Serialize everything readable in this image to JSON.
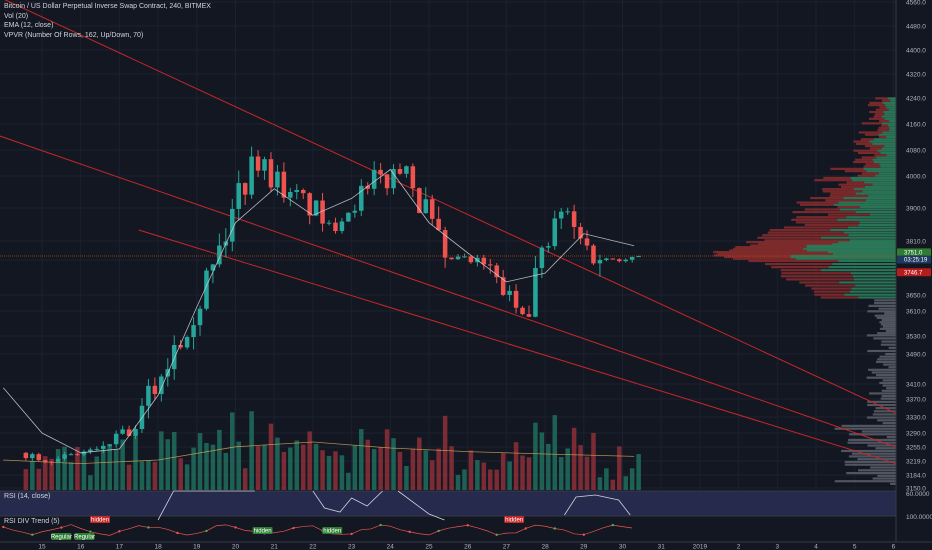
{
  "legend": {
    "title": "Bitcoin / US Dollar Perpetual Inverse Swap Contract, 240, BITMEX",
    "vol": "Vol (20)",
    "ema": "EMA (12, close)",
    "vpvr": "VPVR (Number Of Rows, 162, Up/Down, 70)"
  },
  "rsi_label": "RSI (14, close)",
  "rsi_div_label": "RSI DIV Trend (5)",
  "colors": {
    "background": "#131722",
    "up": "#26a69a",
    "down": "#ef5350",
    "trendline": "#c62828",
    "ema": "#d1d4dc",
    "vol_ma": "#d8a657",
    "rsi_band": "#262a4d",
    "price_tag": "#b71c1c",
    "axis_text": "#b2b5be"
  },
  "badges": {
    "last_price": "3746.7",
    "marker_a": "3751.0",
    "marker_b": "03:25:19"
  },
  "rsi_div_tags": [
    {
      "text": "hidden",
      "kind": "bear"
    },
    {
      "text": "hidden",
      "kind": "bull"
    },
    {
      "text": "hidden",
      "kind": "bull"
    },
    {
      "text": "hidden",
      "kind": "bear"
    },
    {
      "text": "Regular",
      "kind": "bull"
    },
    {
      "text": "Regular",
      "kind": "bull"
    }
  ],
  "chart_data": {
    "type": "candlestick",
    "title": "Bitcoin / US Dollar Perpetual Inverse Swap Contract, 240, BITMEX",
    "x_ticks": [
      "15",
      "16",
      "17",
      "18",
      "19",
      "20",
      "21",
      "22",
      "23",
      "24",
      "25",
      "26",
      "27",
      "28",
      "29",
      "30",
      "31",
      "2019",
      "2",
      "3",
      "4",
      "5",
      "6"
    ],
    "x_tick_days": [
      15,
      16,
      17,
      18,
      19,
      20,
      21,
      22,
      23,
      24,
      25,
      26,
      27,
      28,
      29,
      30,
      31,
      32,
      33,
      34,
      35,
      36,
      37
    ],
    "y_ticks": [
      4560,
      4480,
      4400,
      4320,
      4240,
      4160,
      4080,
      4000,
      3900,
      3810,
      3730,
      3650,
      3610,
      3530,
      3490,
      3410,
      3370,
      3330,
      3290,
      3255,
      3219,
      3184,
      3150
    ],
    "ylim": [
      3150,
      4560
    ],
    "rsi_ticks": [
      "60.0000",
      "100.0000"
    ],
    "ohlc_daily": [
      {
        "day": 15,
        "open": 3240,
        "high": 3280,
        "low": 3205,
        "close": 3225
      },
      {
        "day": 16,
        "open": 3225,
        "high": 3262,
        "low": 3205,
        "close": 3250
      },
      {
        "day": 17,
        "open": 3250,
        "high": 3330,
        "low": 3232,
        "close": 3300
      },
      {
        "day": 18,
        "open": 3300,
        "high": 3560,
        "low": 3290,
        "close": 3510
      },
      {
        "day": 19,
        "open": 3510,
        "high": 3800,
        "low": 3500,
        "close": 3720
      },
      {
        "day": 20,
        "open": 3720,
        "high": 4120,
        "low": 3680,
        "close": 4060
      },
      {
        "day": 21,
        "open": 4060,
        "high": 4130,
        "low": 3870,
        "close": 3950
      },
      {
        "day": 22,
        "open": 3950,
        "high": 4000,
        "low": 3790,
        "close": 3860
      },
      {
        "day": 23,
        "open": 3860,
        "high": 4070,
        "low": 3830,
        "close": 3960
      },
      {
        "day": 24,
        "open": 3960,
        "high": 4230,
        "low": 3940,
        "close": 4030
      },
      {
        "day": 25,
        "open": 4030,
        "high": 4050,
        "low": 3690,
        "close": 3740
      },
      {
        "day": 26,
        "open": 3740,
        "high": 3810,
        "low": 3690,
        "close": 3720
      },
      {
        "day": 27,
        "open": 3720,
        "high": 3740,
        "low": 3580,
        "close": 3600
      },
      {
        "day": 28,
        "open": 3600,
        "high": 3930,
        "low": 3590,
        "close": 3890
      },
      {
        "day": 29,
        "open": 3890,
        "high": 3950,
        "low": 3660,
        "close": 3730
      },
      {
        "day": 30,
        "open": 3730,
        "high": 3760,
        "low": 3690,
        "close": 3746.7
      }
    ],
    "ema": {
      "name": "EMA (12, close)",
      "days": [
        14,
        15,
        16,
        17,
        18,
        19,
        20,
        21,
        22,
        23,
        24,
        25,
        26,
        27,
        28,
        29,
        30.3
      ],
      "values": [
        3400,
        3290,
        3240,
        3250,
        3380,
        3620,
        3860,
        3960,
        3880,
        3930,
        4020,
        3860,
        3760,
        3680,
        3700,
        3830,
        3790
      ]
    },
    "volume_ma": {
      "name": "Vol (20)",
      "days": [
        14,
        16,
        18,
        20,
        22,
        24,
        26,
        28,
        30.3
      ],
      "values": [
        0.25,
        0.22,
        0.25,
        0.36,
        0.4,
        0.35,
        0.32,
        0.3,
        0.28
      ]
    },
    "trendlines": [
      {
        "from": [
          13.5,
          4600
        ],
        "to": [
          37.5,
          3320
        ]
      },
      {
        "from": [
          13.5,
          4140
        ],
        "to": [
          37.5,
          3240
        ]
      },
      {
        "from": [
          17.5,
          3840
        ],
        "to": [
          37.5,
          3200
        ]
      }
    ],
    "volume_profile_peak": 3760,
    "rsi_level": 60
  }
}
